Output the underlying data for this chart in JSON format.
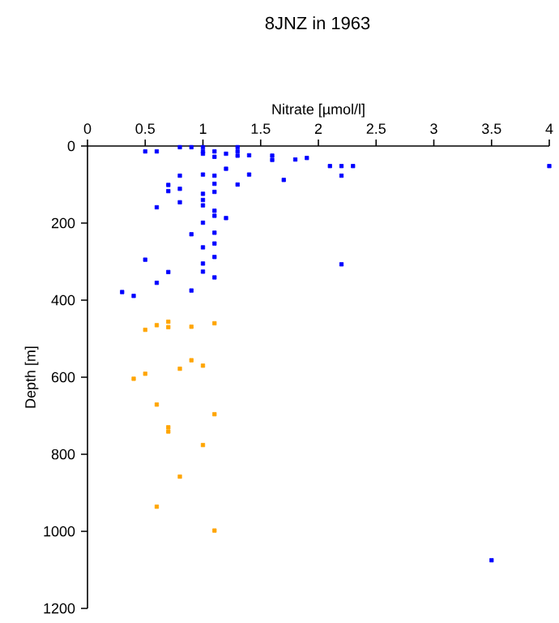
{
  "chart_data": {
    "type": "scatter",
    "title": "8JNZ in 1963",
    "xlabel": "Nitrate [µmol/l]",
    "ylabel": "Depth [m]",
    "xlim": [
      0,
      4
    ],
    "xticks": [
      0,
      0.5,
      1,
      1.5,
      2,
      2.5,
      3,
      3.5,
      4
    ],
    "ylim": [
      1200,
      0
    ],
    "yticks": [
      0,
      200,
      400,
      600,
      800,
      1000,
      1200
    ],
    "grid": false,
    "marker": "square",
    "series": [
      {
        "color": "#0000ff",
        "x": [
          0.5,
          0.6,
          0.8,
          0.9,
          1.0,
          1.0,
          1.0,
          1.1,
          1.1,
          1.2,
          1.3,
          1.3,
          1.3,
          1.4,
          1.6,
          1.6,
          1.8,
          1.9,
          2.1,
          2.2,
          2.3,
          4.0,
          2.2,
          1.4,
          1.7,
          1.3,
          1.2,
          1.1,
          1.0,
          1.1,
          1.1,
          0.8,
          0.7,
          0.7,
          0.8,
          0.8,
          1.0,
          1.0,
          1.0,
          0.6,
          1.1,
          1.1,
          1.2,
          1.0,
          0.9,
          1.1,
          1.0,
          1.1,
          1.1,
          0.5,
          1.0,
          2.2,
          0.7,
          1.0,
          1.1,
          0.6,
          0.9,
          0.3,
          0.4,
          3.5
        ],
        "values": [
          14,
          14,
          3,
          3,
          3,
          14,
          20,
          14,
          28,
          20,
          3,
          14,
          25,
          24,
          25,
          36,
          35,
          31,
          52,
          52,
          52,
          52,
          77,
          74,
          88,
          100,
          59,
          77,
          74,
          98,
          119,
          77,
          101,
          117,
          111,
          146,
          124,
          140,
          154,
          159,
          168,
          181,
          187,
          199,
          229,
          225,
          263,
          253,
          288,
          295,
          305,
          307,
          327,
          326,
          341,
          355,
          375,
          379,
          389,
          1075
        ]
      },
      {
        "color": "#ffa500",
        "x": [
          0.5,
          0.6,
          0.7,
          0.7,
          0.9,
          1.1,
          0.9,
          1.0,
          0.8,
          0.5,
          0.4,
          0.6,
          1.1,
          0.7,
          0.7,
          1.0,
          0.8,
          0.6,
          1.1
        ],
        "values": [
          477,
          465,
          456,
          470,
          469,
          460,
          556,
          570,
          578,
          591,
          604,
          671,
          696,
          730,
          741,
          776,
          858,
          936,
          998
        ]
      }
    ]
  }
}
